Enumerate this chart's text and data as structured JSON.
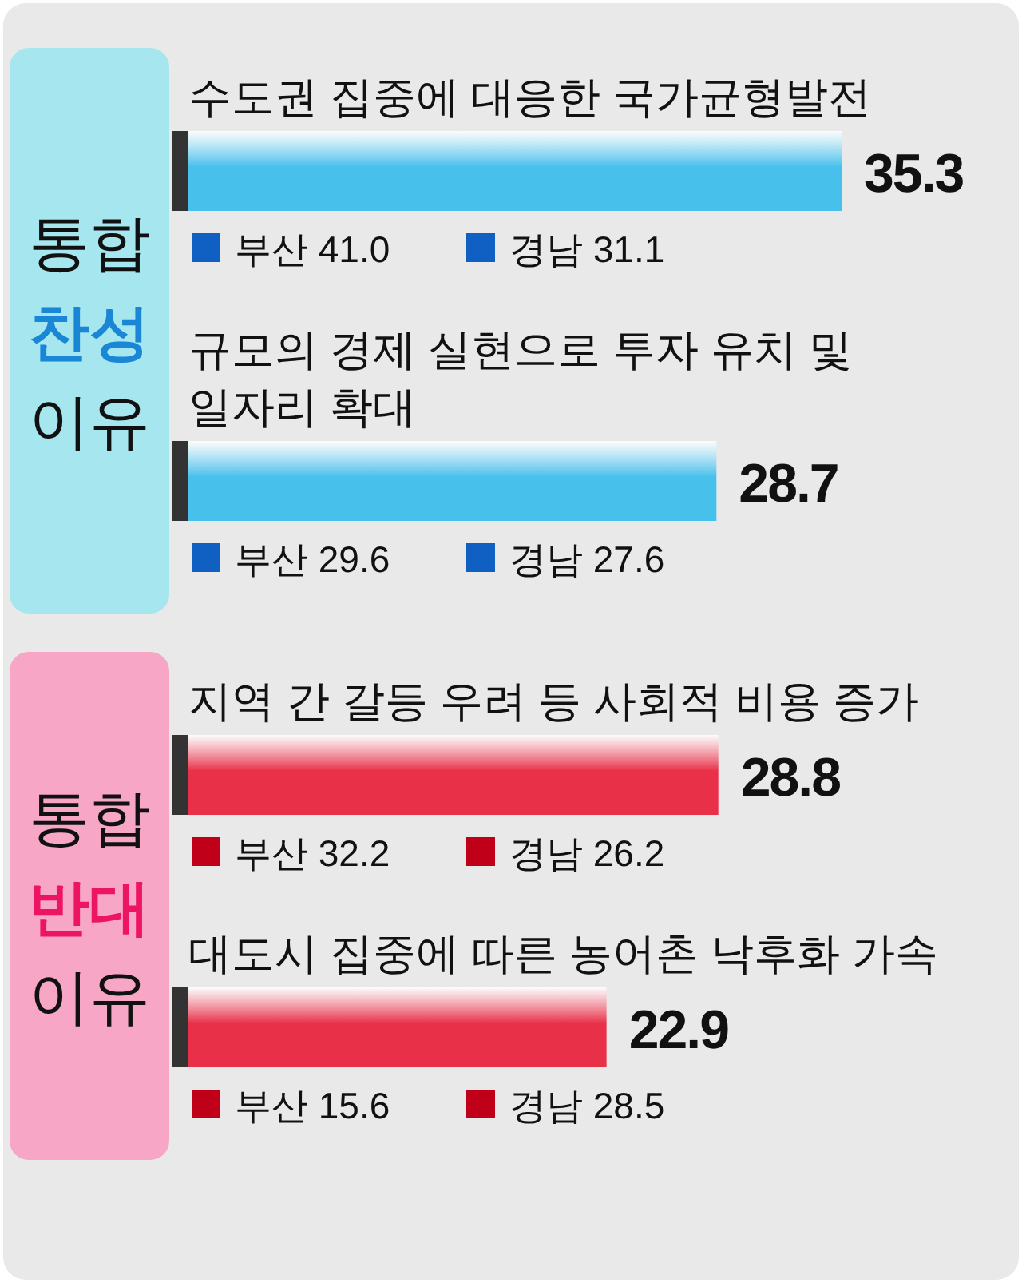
{
  "chart_data": {
    "type": "bar",
    "orientation": "horizontal",
    "data_labels": true,
    "categories": [
      "수도권 집중에 대응한 국가균형발전",
      "규모의 경제 실현으로 투자 유치 및 일자리 확대",
      "지역 간 갈등 우려 등 사회적 비용 증가",
      "대도시 집중에 따른 농어촌 낙후화 가속"
    ],
    "values": [
      35.3,
      28.7,
      28.8,
      22.9
    ],
    "colors": [
      "#48c0ec",
      "#48c0ec",
      "#e83048",
      "#e83048"
    ],
    "annotations": [
      "통합 찬성 이유",
      "통합 반대 이유",
      "부산 41.0",
      "경남 31.1",
      "부산 29.6",
      "경남 27.6",
      "부산 32.2",
      "경남 26.2",
      "부산 15.6",
      "경남 28.5"
    ]
  }
}
